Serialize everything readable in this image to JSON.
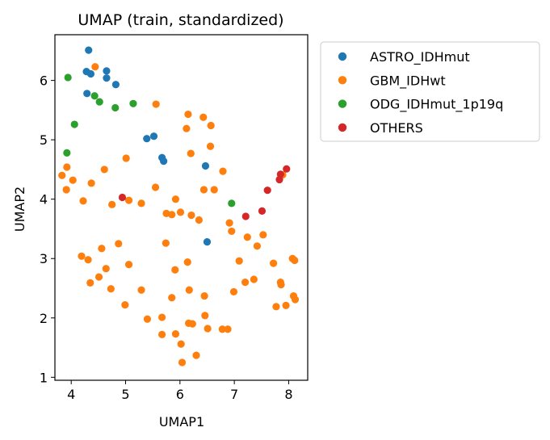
{
  "chart_data": {
    "type": "scatter",
    "title": "UMAP (train, standardized)",
    "xlabel": "UMAP1",
    "ylabel": "UMAP2",
    "xlim": [
      3.7,
      8.35
    ],
    "ylim": [
      0.95,
      6.77
    ],
    "xticks": [
      4,
      5,
      6,
      7,
      8
    ],
    "yticks": [
      1,
      2,
      3,
      4,
      5,
      6
    ],
    "grid": false,
    "legend_position": "outside-right",
    "series": [
      {
        "name": "ASTRO_IDHmut",
        "color": "#1f77b4",
        "points": [
          [
            4.32,
            6.51
          ],
          [
            4.28,
            6.15
          ],
          [
            4.36,
            6.11
          ],
          [
            4.65,
            6.16
          ],
          [
            4.65,
            6.04
          ],
          [
            4.82,
            5.93
          ],
          [
            4.29,
            5.78
          ],
          [
            5.39,
            5.02
          ],
          [
            5.52,
            5.06
          ],
          [
            5.67,
            4.7
          ],
          [
            5.7,
            4.64
          ],
          [
            6.47,
            4.56
          ],
          [
            6.5,
            3.28
          ]
        ]
      },
      {
        "name": "GBM_IDHwt",
        "color": "#ff7f0e",
        "points": [
          [
            4.44,
            6.23
          ],
          [
            5.56,
            5.6
          ],
          [
            6.15,
            5.43
          ],
          [
            6.43,
            5.38
          ],
          [
            6.12,
            5.19
          ],
          [
            6.57,
            5.24
          ],
          [
            6.56,
            4.89
          ],
          [
            6.2,
            4.77
          ],
          [
            5.01,
            4.69
          ],
          [
            3.92,
            4.54
          ],
          [
            3.83,
            4.4
          ],
          [
            4.61,
            4.5
          ],
          [
            6.79,
            4.47
          ],
          [
            4.03,
            4.32
          ],
          [
            4.37,
            4.27
          ],
          [
            3.91,
            4.16
          ],
          [
            5.55,
            4.2
          ],
          [
            6.44,
            4.16
          ],
          [
            6.63,
            4.16
          ],
          [
            4.22,
            3.97
          ],
          [
            5.06,
            3.98
          ],
          [
            5.92,
            4.0
          ],
          [
            4.75,
            3.91
          ],
          [
            5.29,
            3.93
          ],
          [
            5.75,
            3.76
          ],
          [
            5.85,
            3.74
          ],
          [
            6.01,
            3.78
          ],
          [
            6.21,
            3.73
          ],
          [
            6.35,
            3.65
          ],
          [
            6.91,
            3.6
          ],
          [
            6.95,
            3.46
          ],
          [
            7.24,
            3.36
          ],
          [
            7.53,
            3.4
          ],
          [
            7.42,
            3.21
          ],
          [
            5.74,
            3.26
          ],
          [
            4.87,
            3.25
          ],
          [
            4.56,
            3.17
          ],
          [
            4.19,
            3.04
          ],
          [
            4.31,
            2.98
          ],
          [
            5.06,
            2.9
          ],
          [
            6.14,
            2.94
          ],
          [
            7.09,
            2.96
          ],
          [
            7.72,
            2.92
          ],
          [
            8.07,
            3.0
          ],
          [
            8.11,
            2.97
          ],
          [
            4.64,
            2.83
          ],
          [
            5.91,
            2.81
          ],
          [
            4.51,
            2.69
          ],
          [
            4.35,
            2.59
          ],
          [
            7.2,
            2.6
          ],
          [
            7.36,
            2.65
          ],
          [
            7.85,
            2.6
          ],
          [
            7.86,
            2.56
          ],
          [
            4.73,
            2.49
          ],
          [
            5.29,
            2.47
          ],
          [
            6.17,
            2.47
          ],
          [
            6.99,
            2.44
          ],
          [
            6.45,
            2.37
          ],
          [
            5.85,
            2.34
          ],
          [
            8.09,
            2.37
          ],
          [
            8.12,
            2.31
          ],
          [
            4.99,
            2.22
          ],
          [
            7.77,
            2.19
          ],
          [
            7.95,
            2.21
          ],
          [
            5.4,
            1.98
          ],
          [
            5.67,
            2.01
          ],
          [
            6.46,
            2.04
          ],
          [
            6.16,
            1.91
          ],
          [
            6.23,
            1.9
          ],
          [
            6.51,
            1.82
          ],
          [
            6.78,
            1.81
          ],
          [
            6.88,
            1.81
          ],
          [
            5.67,
            1.72
          ],
          [
            5.92,
            1.73
          ],
          [
            6.02,
            1.56
          ],
          [
            6.3,
            1.37
          ],
          [
            6.04,
            1.25
          ],
          [
            7.89,
            4.41
          ]
        ]
      },
      {
        "name": "ODG_IDHmut_1p19q",
        "color": "#2ca02c",
        "points": [
          [
            3.94,
            6.05
          ],
          [
            4.43,
            5.74
          ],
          [
            4.52,
            5.64
          ],
          [
            4.81,
            5.54
          ],
          [
            5.14,
            5.61
          ],
          [
            4.06,
            5.26
          ],
          [
            3.92,
            4.78
          ],
          [
            6.95,
            3.93
          ]
        ]
      },
      {
        "name": "OTHERS",
        "color": "#d62728",
        "points": [
          [
            4.94,
            4.03
          ],
          [
            7.21,
            3.71
          ],
          [
            7.51,
            3.8
          ],
          [
            7.61,
            4.15
          ],
          [
            7.83,
            4.33
          ],
          [
            7.85,
            4.42
          ],
          [
            7.96,
            4.51
          ]
        ]
      }
    ]
  }
}
